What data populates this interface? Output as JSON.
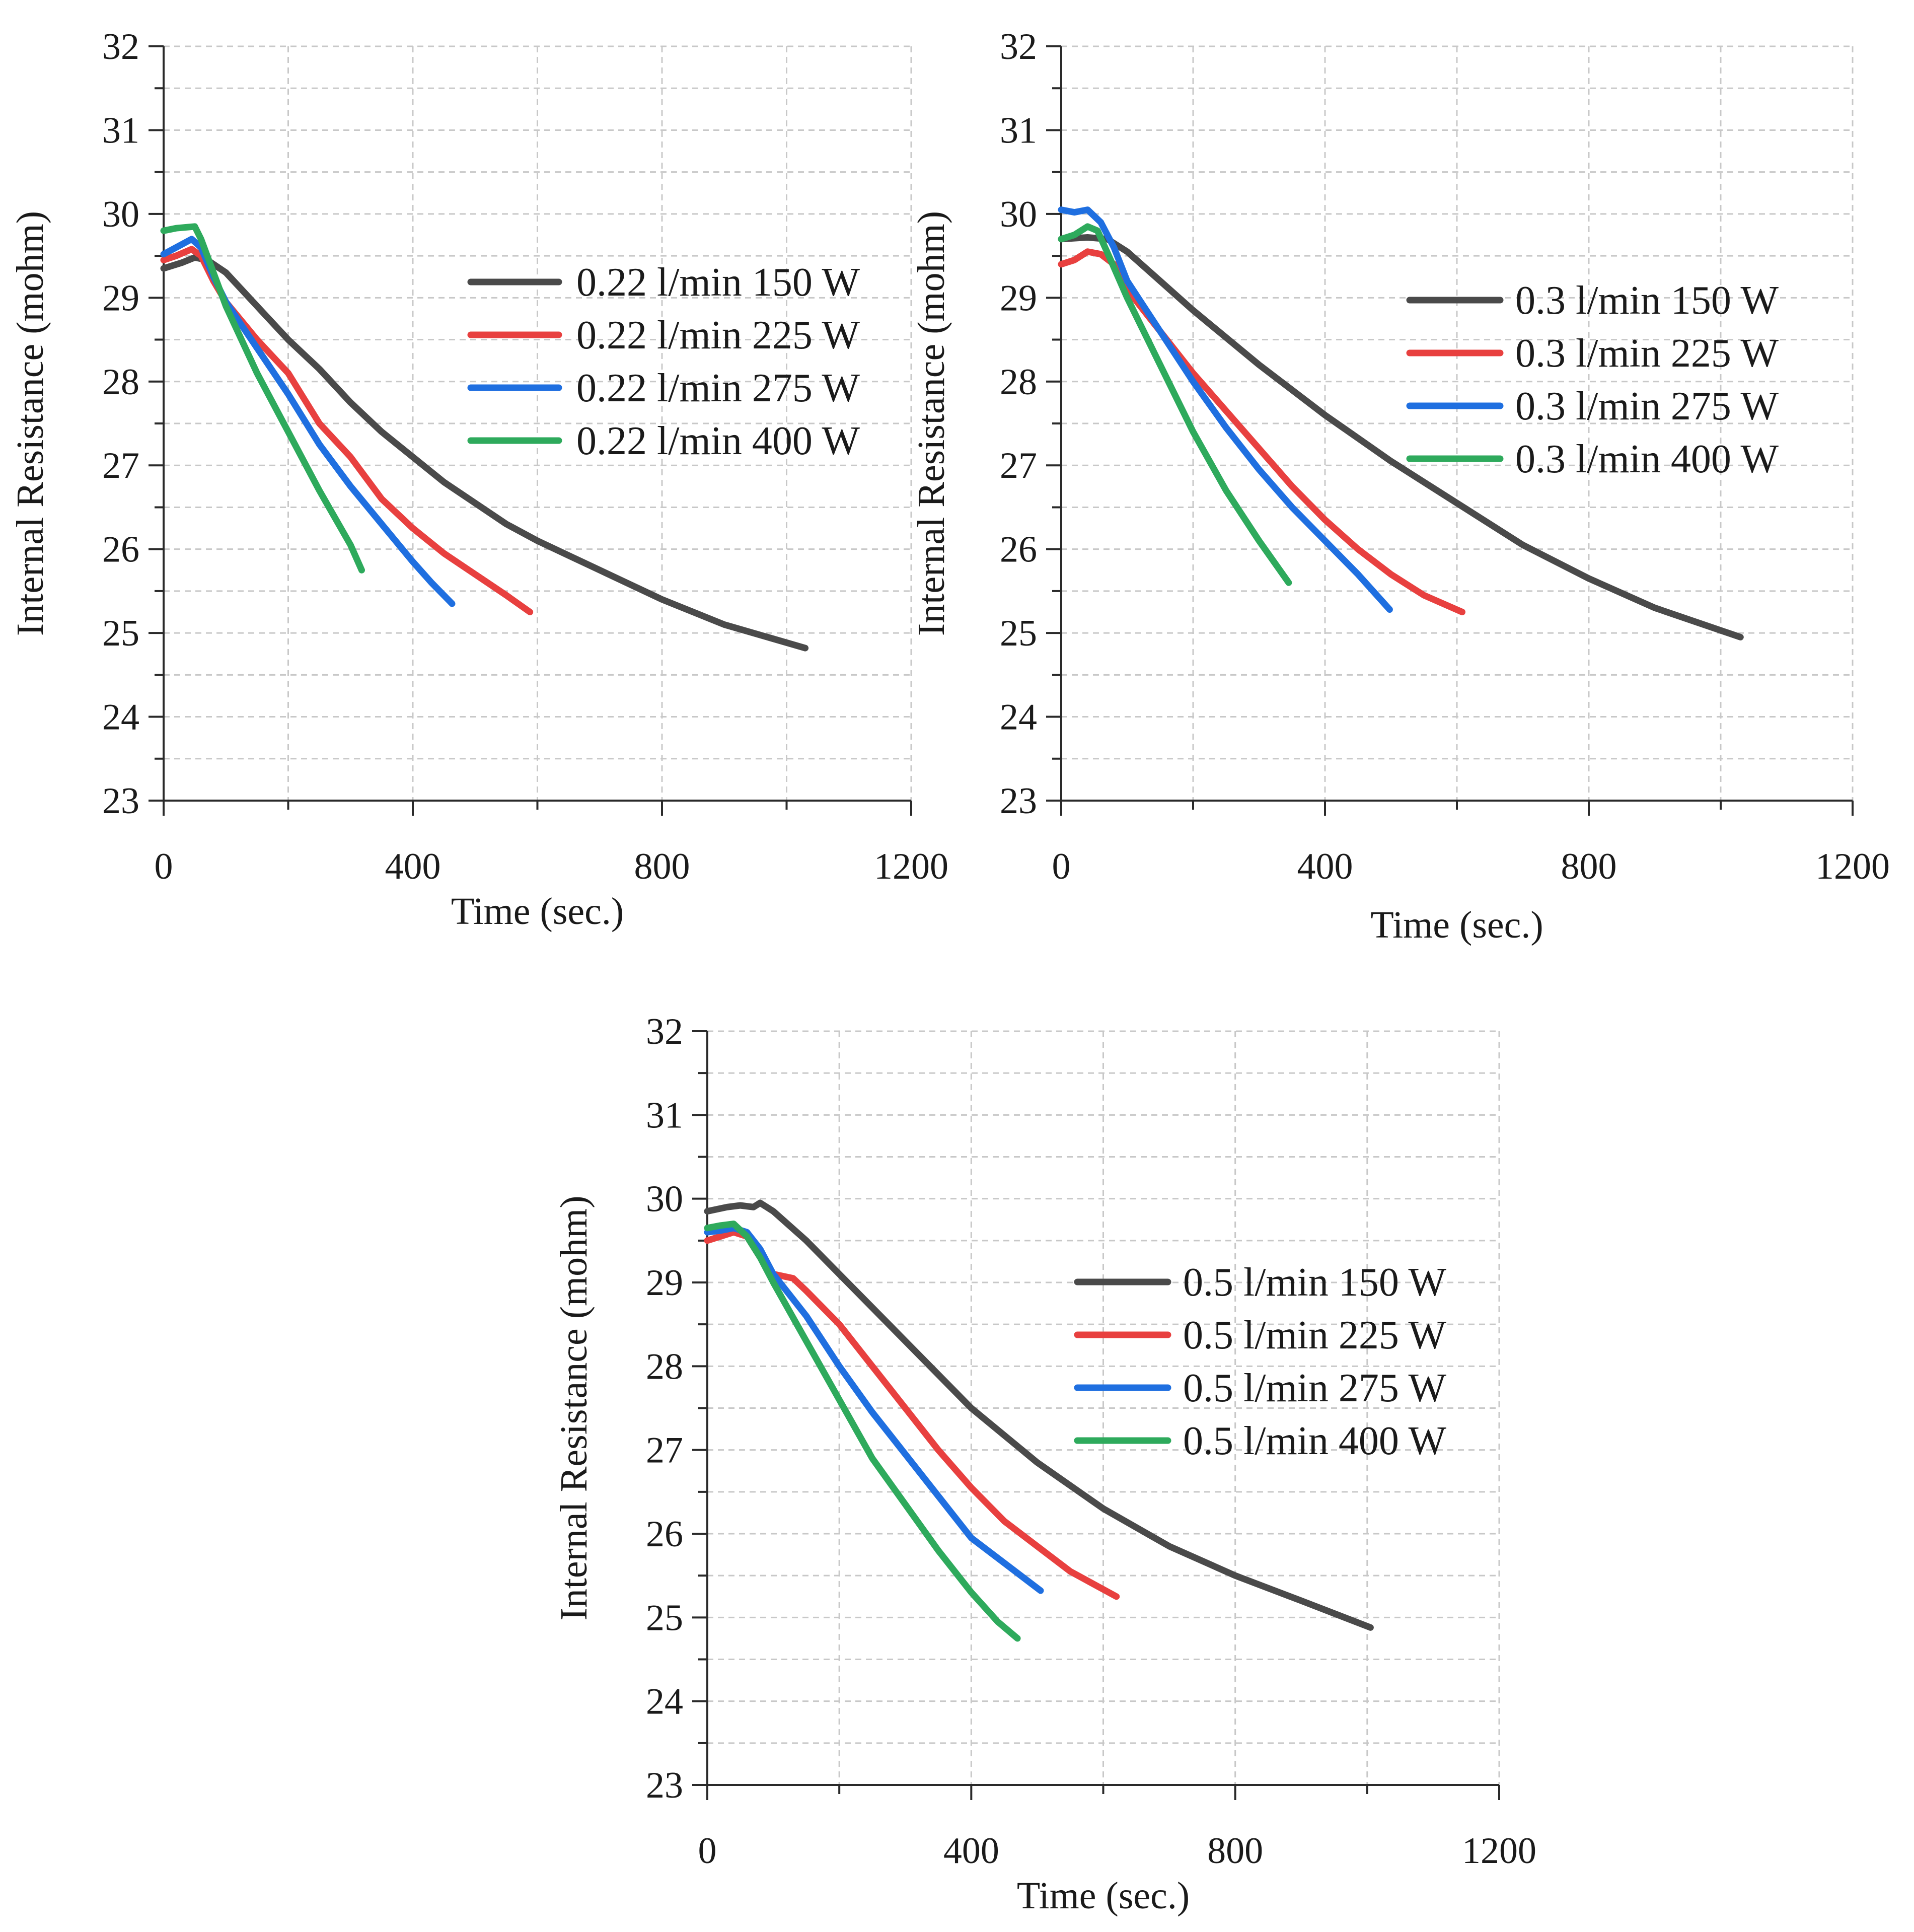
{
  "chart_data": [
    {
      "type": "line",
      "title": "",
      "xlabel": "Time (sec.)",
      "ylabel": "Internal Resistance (mohm)",
      "xlim": [
        0,
        1200
      ],
      "ylim": [
        23,
        32
      ],
      "xticks": [
        0,
        400,
        800,
        1200
      ],
      "yticks": [
        23,
        24,
        25,
        26,
        27,
        28,
        29,
        30,
        31,
        32
      ],
      "grid": true,
      "legend": "upper-right",
      "series": [
        {
          "name": "0.22 l/min 150 W",
          "color": "#4a4a4a",
          "x": [
            0,
            30,
            50,
            70,
            100,
            150,
            200,
            250,
            300,
            350,
            400,
            450,
            500,
            550,
            600,
            700,
            800,
            900,
            1030
          ],
          "y": [
            29.35,
            29.42,
            29.48,
            29.45,
            29.3,
            28.9,
            28.5,
            28.15,
            27.75,
            27.4,
            27.1,
            26.8,
            26.55,
            26.3,
            26.1,
            25.75,
            25.4,
            25.1,
            24.82
          ]
        },
        {
          "name": "0.22 l/min 225 W",
          "color": "#e8403f",
          "x": [
            0,
            20,
            45,
            60,
            80,
            100,
            150,
            200,
            250,
            300,
            350,
            400,
            450,
            500,
            550,
            588
          ],
          "y": [
            29.45,
            29.5,
            29.58,
            29.5,
            29.2,
            28.95,
            28.5,
            28.1,
            27.5,
            27.1,
            26.6,
            26.25,
            25.95,
            25.7,
            25.45,
            25.25
          ]
        },
        {
          "name": "0.22 l/min 275 W",
          "color": "#1f6fe0",
          "x": [
            0,
            20,
            45,
            60,
            80,
            100,
            150,
            200,
            250,
            300,
            350,
            400,
            430,
            463
          ],
          "y": [
            29.52,
            29.6,
            29.7,
            29.6,
            29.25,
            28.95,
            28.4,
            27.85,
            27.25,
            26.75,
            26.3,
            25.85,
            25.6,
            25.35
          ]
        },
        {
          "name": "0.22 l/min 400 W",
          "color": "#2eaa5c",
          "x": [
            0,
            20,
            50,
            60,
            80,
            100,
            150,
            200,
            250,
            300,
            318
          ],
          "y": [
            29.8,
            29.83,
            29.85,
            29.7,
            29.3,
            28.9,
            28.1,
            27.4,
            26.7,
            26.05,
            25.75
          ]
        }
      ]
    },
    {
      "type": "line",
      "title": "",
      "xlabel": "Time (sec.)",
      "ylabel": "Internal Resistance (mohm)",
      "xlim": [
        0,
        1200
      ],
      "ylim": [
        23,
        32
      ],
      "xticks": [
        0,
        400,
        800,
        1200
      ],
      "yticks": [
        23,
        24,
        25,
        26,
        27,
        28,
        29,
        30,
        31,
        32
      ],
      "grid": true,
      "legend": "right",
      "series": [
        {
          "name": "0.3 l/min 150 W",
          "color": "#4a4a4a",
          "x": [
            0,
            40,
            70,
            100,
            150,
            200,
            300,
            400,
            500,
            600,
            700,
            800,
            900,
            1030
          ],
          "y": [
            29.7,
            29.72,
            29.7,
            29.55,
            29.2,
            28.85,
            28.2,
            27.6,
            27.05,
            26.55,
            26.05,
            25.65,
            25.3,
            24.95
          ]
        },
        {
          "name": "0.3 l/min 225 W",
          "color": "#e8403f",
          "x": [
            0,
            20,
            40,
            60,
            80,
            100,
            150,
            200,
            250,
            300,
            350,
            400,
            450,
            500,
            550,
            608
          ],
          "y": [
            29.4,
            29.45,
            29.55,
            29.52,
            29.4,
            29.1,
            28.6,
            28.1,
            27.65,
            27.2,
            26.75,
            26.35,
            26.0,
            25.7,
            25.45,
            25.25
          ]
        },
        {
          "name": "0.3 l/min 275 W",
          "color": "#1f6fe0",
          "x": [
            0,
            20,
            40,
            60,
            80,
            100,
            150,
            200,
            250,
            300,
            350,
            400,
            450,
            498
          ],
          "y": [
            30.05,
            30.02,
            30.05,
            29.9,
            29.6,
            29.2,
            28.6,
            28.0,
            27.45,
            26.95,
            26.5,
            26.1,
            25.7,
            25.28
          ]
        },
        {
          "name": "0.3 l/min 400 W",
          "color": "#2eaa5c",
          "x": [
            0,
            20,
            40,
            55,
            75,
            100,
            150,
            200,
            250,
            300,
            345
          ],
          "y": [
            29.7,
            29.75,
            29.85,
            29.8,
            29.45,
            29.0,
            28.2,
            27.4,
            26.7,
            26.1,
            25.6
          ]
        }
      ]
    },
    {
      "type": "line",
      "title": "",
      "xlabel": "Time (sec.)",
      "ylabel": "Internal Resistance (mohm)",
      "xlim": [
        0,
        1200
      ],
      "ylim": [
        23,
        32
      ],
      "xticks": [
        0,
        400,
        800,
        1200
      ],
      "yticks": [
        23,
        24,
        25,
        26,
        27,
        28,
        29,
        30,
        31,
        32
      ],
      "grid": true,
      "legend": "right",
      "series": [
        {
          "name": "0.5 l/min 150 W",
          "color": "#4a4a4a",
          "x": [
            0,
            30,
            50,
            70,
            80,
            90,
            100,
            150,
            200,
            300,
            400,
            500,
            600,
            700,
            800,
            900,
            1005
          ],
          "y": [
            29.85,
            29.9,
            29.92,
            29.9,
            29.95,
            29.9,
            29.85,
            29.5,
            29.1,
            28.3,
            27.5,
            26.85,
            26.3,
            25.85,
            25.5,
            25.2,
            24.88
          ]
        },
        {
          "name": "0.5 l/min 225 W",
          "color": "#e8403f",
          "x": [
            0,
            20,
            40,
            60,
            80,
            100,
            130,
            150,
            200,
            250,
            300,
            350,
            400,
            450,
            500,
            550,
            620
          ],
          "y": [
            29.5,
            29.55,
            29.6,
            29.55,
            29.3,
            29.1,
            29.05,
            28.9,
            28.5,
            28.0,
            27.5,
            27.0,
            26.55,
            26.15,
            25.85,
            25.55,
            25.25
          ]
        },
        {
          "name": "0.5 l/min 275 W",
          "color": "#1f6fe0",
          "x": [
            0,
            20,
            40,
            60,
            80,
            100,
            150,
            200,
            250,
            300,
            350,
            400,
            450,
            505
          ],
          "y": [
            29.6,
            29.62,
            29.65,
            29.6,
            29.4,
            29.1,
            28.6,
            28.0,
            27.45,
            26.95,
            26.45,
            25.95,
            25.65,
            25.32
          ]
        },
        {
          "name": "0.5 l/min 400 W",
          "color": "#2eaa5c",
          "x": [
            0,
            20,
            40,
            60,
            80,
            100,
            150,
            200,
            250,
            300,
            350,
            400,
            440,
            470
          ],
          "y": [
            29.65,
            29.68,
            29.7,
            29.55,
            29.3,
            29.0,
            28.3,
            27.6,
            26.9,
            26.35,
            25.8,
            25.3,
            24.95,
            24.75
          ]
        }
      ]
    }
  ]
}
